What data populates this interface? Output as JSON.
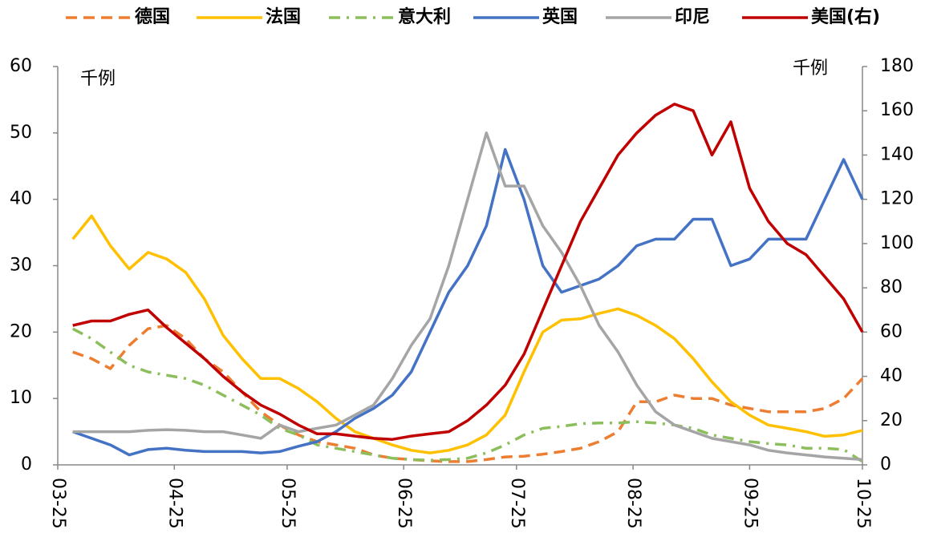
{
  "chart_data": {
    "type": "line",
    "annotations": [
      "千例",
      "千例"
    ],
    "x": [
      4,
      9,
      14,
      19,
      24,
      29,
      34,
      39,
      44,
      49,
      54,
      59,
      64,
      69,
      74,
      79,
      84,
      89,
      94,
      99,
      104,
      109,
      114,
      119,
      124,
      129,
      134,
      139,
      144,
      149,
      154,
      159,
      164,
      169,
      174,
      179,
      184,
      189,
      194,
      199,
      204,
      209,
      214
    ],
    "xlim": [
      0,
      214
    ],
    "xticks": [
      {
        "value": 0,
        "label": "03-25"
      },
      {
        "value": 31,
        "label": "04-25"
      },
      {
        "value": 61,
        "label": "05-25"
      },
      {
        "value": 92,
        "label": "06-25"
      },
      {
        "value": 122,
        "label": "07-25"
      },
      {
        "value": 153,
        "label": "08-25"
      },
      {
        "value": 184,
        "label": "09-25"
      },
      {
        "value": 214,
        "label": "10-25"
      }
    ],
    "ylim": [
      0,
      60
    ],
    "yticks": [
      0,
      10,
      20,
      30,
      40,
      50,
      60
    ],
    "y2lim": [
      0,
      180
    ],
    "y2ticks": [
      0,
      20,
      40,
      60,
      80,
      100,
      120,
      140,
      160,
      180
    ],
    "series": [
      {
        "name": "德国",
        "color": "#ed7d31",
        "style": "dashed",
        "values": [
          17,
          16,
          14.5,
          18,
          20.5,
          21,
          19,
          16,
          14,
          11,
          8,
          6,
          4.5,
          3.5,
          3,
          2.5,
          1.5,
          1,
          0.8,
          0.6,
          0.5,
          0.5,
          0.8,
          1.2,
          1.3,
          1.6,
          2,
          2.5,
          3.5,
          5,
          9.5,
          9.5,
          10.5,
          10,
          10,
          9,
          8.5,
          8,
          8,
          8,
          8.5,
          10,
          13
        ]
      },
      {
        "name": "法国",
        "color": "#ffc000",
        "style": "solid",
        "values": [
          34,
          37.5,
          33,
          29.5,
          32,
          31,
          29,
          25,
          19.5,
          16,
          13,
          13,
          11.5,
          9.5,
          7,
          5,
          4,
          3,
          2.2,
          1.8,
          2.2,
          3,
          4.5,
          7.5,
          14,
          20,
          21.8,
          22,
          22.8,
          23.5,
          22.5,
          21,
          19,
          16,
          12.5,
          9.5,
          7.5,
          6,
          5.5,
          5,
          4.3,
          4.5,
          5.2
        ]
      },
      {
        "name": "意大利",
        "color": "#8cbf5c",
        "style": "dashdot",
        "values": [
          20.5,
          19,
          17,
          15,
          14,
          13.5,
          13,
          12,
          10.5,
          9,
          7.5,
          5.5,
          4.5,
          3,
          2.5,
          2,
          1.5,
          1,
          0.8,
          0.7,
          0.8,
          1,
          1.8,
          3,
          4.5,
          5.5,
          5.8,
          6.2,
          6.3,
          6.3,
          6.5,
          6.3,
          6,
          5.5,
          4.5,
          4,
          3.5,
          3.2,
          3,
          2.5,
          2.5,
          2.3,
          0.5
        ]
      },
      {
        "name": "英国",
        "color": "#4472c4",
        "style": "solid",
        "values": [
          5,
          4,
          3,
          1.5,
          2.3,
          2.5,
          2.2,
          2,
          2,
          2,
          1.8,
          2,
          2.8,
          3.5,
          5,
          7,
          8.5,
          10.5,
          14,
          20,
          26,
          30,
          36,
          47.5,
          40,
          30,
          26,
          27,
          28,
          30,
          33,
          34,
          34,
          37,
          37,
          30,
          31,
          34,
          34,
          34,
          40,
          46,
          40
        ]
      },
      {
        "name": "印尼",
        "color": "#a5a5a5",
        "style": "solid",
        "values": [
          5,
          5,
          5,
          5,
          5.2,
          5.3,
          5.2,
          5,
          5,
          4.5,
          4,
          6,
          5,
          5.5,
          6,
          7.5,
          9,
          13,
          18,
          22,
          30,
          40,
          50,
          42,
          42,
          36,
          32,
          27,
          21,
          17,
          12,
          8,
          6,
          5,
          4,
          3.5,
          3,
          2.2,
          1.8,
          1.5,
          1.2,
          1,
          0.8
        ]
      },
      {
        "name": "美国(右)",
        "color": "#c00000",
        "style": "solid",
        "axis": "y2",
        "values": [
          63,
          65,
          65,
          68,
          70,
          62,
          55,
          48,
          40,
          33,
          27,
          23,
          18,
          14,
          14,
          13,
          12,
          11.5,
          13,
          14,
          15,
          20,
          27,
          36,
          50,
          70,
          90,
          110,
          125,
          140,
          150,
          158,
          163,
          160,
          140,
          155,
          125,
          110,
          100,
          95,
          85,
          75,
          60
        ]
      }
    ]
  }
}
